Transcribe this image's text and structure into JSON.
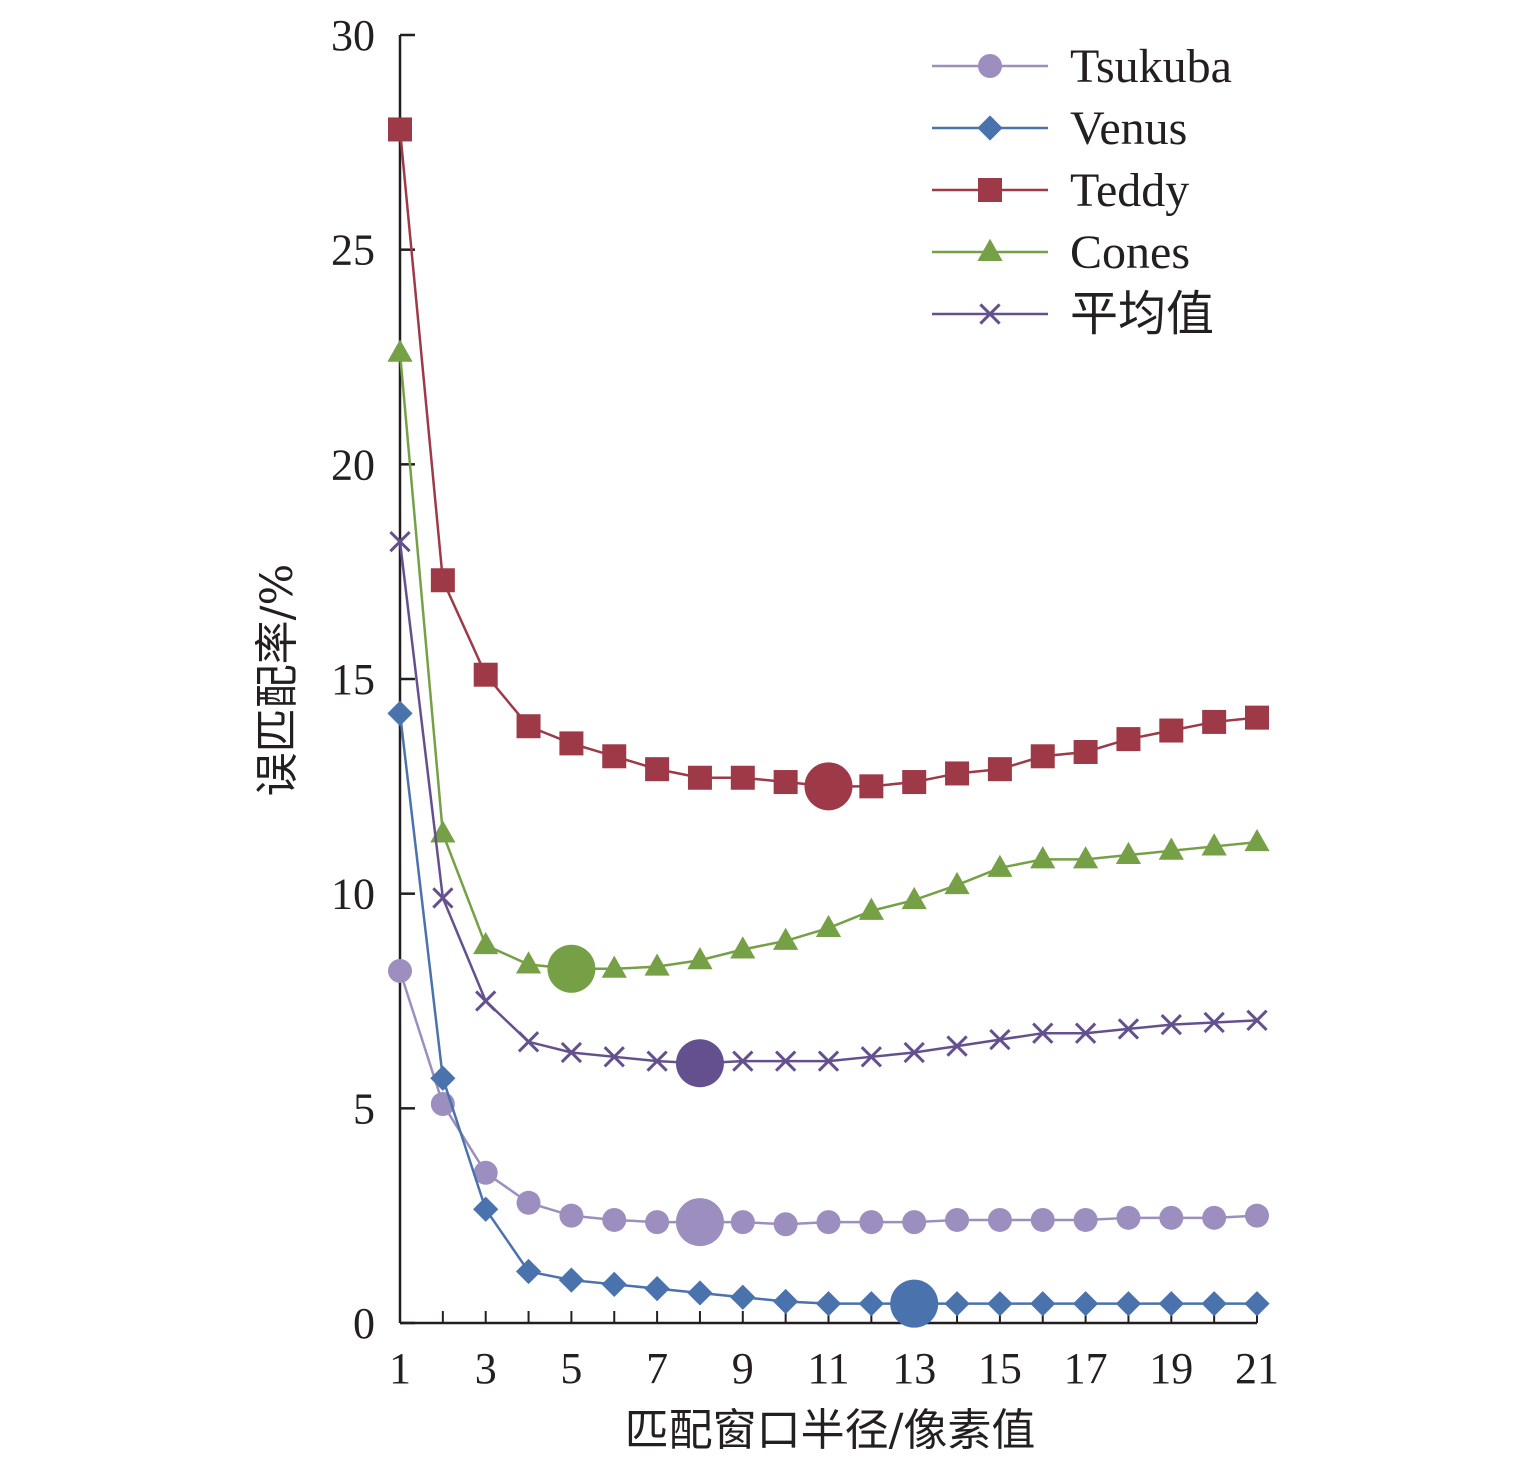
{
  "chart_data": {
    "type": "line",
    "xlabel": "匹配窗口半径/像素值",
    "ylabel": "误匹配率/%",
    "xlim": [
      1,
      21
    ],
    "ylim": [
      0,
      30
    ],
    "x_ticks": [
      1,
      3,
      5,
      7,
      9,
      11,
      13,
      15,
      17,
      19,
      21
    ],
    "y_ticks": [
      0,
      5,
      10,
      15,
      20,
      25,
      30
    ],
    "grid": false,
    "legend_position": "top-right",
    "x": [
      1,
      2,
      3,
      4,
      5,
      6,
      7,
      8,
      9,
      10,
      11,
      12,
      13,
      14,
      15,
      16,
      17,
      18,
      19,
      20,
      21
    ],
    "series": [
      {
        "name": "Tsukuba",
        "color": "#9c8fc0",
        "marker": "circle",
        "values": [
          8.2,
          5.1,
          3.5,
          2.8,
          2.5,
          2.4,
          2.35,
          2.35,
          2.35,
          2.3,
          2.35,
          2.35,
          2.35,
          2.4,
          2.4,
          2.4,
          2.4,
          2.45,
          2.45,
          2.45,
          2.5
        ],
        "highlight": {
          "x": 8,
          "y": 2.35
        }
      },
      {
        "name": "Venus",
        "color": "#4a72ac",
        "marker": "diamond",
        "values": [
          14.2,
          5.7,
          2.65,
          1.2,
          1.0,
          0.9,
          0.8,
          0.7,
          0.6,
          0.5,
          0.45,
          0.45,
          0.45,
          0.45,
          0.45,
          0.45,
          0.45,
          0.45,
          0.45,
          0.45,
          0.45
        ],
        "highlight": {
          "x": 13,
          "y": 0.45
        }
      },
      {
        "name": "Teddy",
        "color": "#9e3a47",
        "marker": "square",
        "values": [
          27.8,
          17.3,
          15.1,
          13.9,
          13.5,
          13.2,
          12.9,
          12.7,
          12.7,
          12.6,
          12.5,
          12.5,
          12.6,
          12.8,
          12.9,
          13.2,
          13.3,
          13.6,
          13.8,
          14.0,
          14.1
        ],
        "highlight": {
          "x": 11,
          "y": 12.5
        }
      },
      {
        "name": "Cones",
        "color": "#76a046",
        "marker": "triangle",
        "values": [
          22.6,
          11.4,
          8.8,
          8.35,
          8.25,
          8.25,
          8.3,
          8.45,
          8.7,
          8.9,
          9.2,
          9.6,
          9.85,
          10.2,
          10.6,
          10.8,
          10.8,
          10.9,
          11.0,
          11.1,
          11.2
        ],
        "highlight": {
          "x": 5,
          "y": 8.25
        }
      },
      {
        "name": "平均值",
        "color": "#65508f",
        "marker": "x",
        "values": [
          18.2,
          9.9,
          7.5,
          6.55,
          6.3,
          6.2,
          6.1,
          6.05,
          6.1,
          6.1,
          6.1,
          6.2,
          6.3,
          6.45,
          6.6,
          6.75,
          6.75,
          6.85,
          6.95,
          7.0,
          7.05
        ],
        "highlight": {
          "x": 8,
          "y": 6.05
        }
      }
    ]
  }
}
